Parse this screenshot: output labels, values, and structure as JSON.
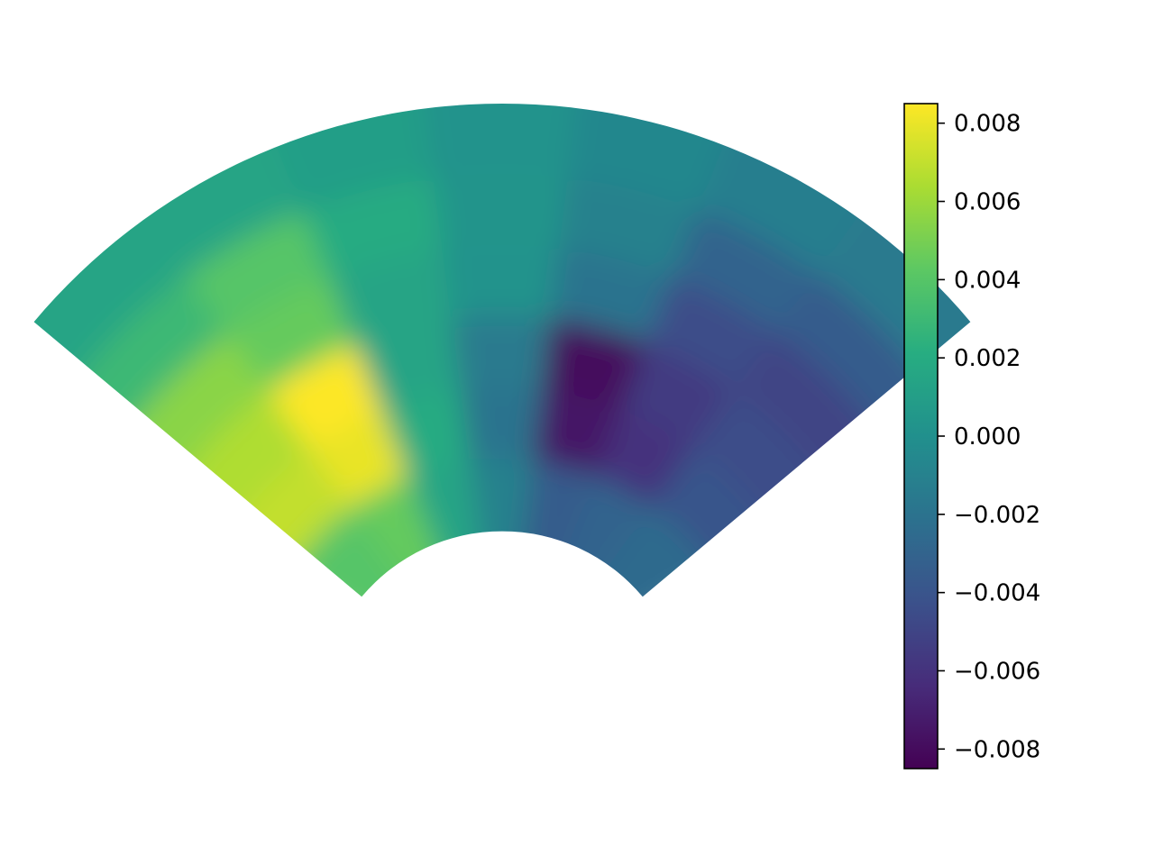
{
  "chart_data": {
    "type": "heatmap",
    "projection": "polar-sector",
    "colormap": "viridis",
    "theta_range_deg": [
      -50,
      50
    ],
    "r_range": [
      0.3,
      1.0
    ],
    "theta_bins": 7,
    "r_bins": 6,
    "rows_order": "outer-to-inner",
    "columns_order": "left-to-right",
    "values": [
      [
        0.0015,
        0.0015,
        0.001,
        0.0002,
        -0.0006,
        -0.0012,
        -0.0015
      ],
      [
        0.003,
        0.004,
        0.002,
        0.0003,
        -0.001,
        -0.003,
        -0.0035
      ],
      [
        0.0055,
        0.0045,
        0.0015,
        0.0002,
        -0.002,
        -0.0045,
        -0.005
      ],
      [
        0.0065,
        0.0085,
        0.0015,
        -0.0015,
        -0.008,
        -0.0055,
        -0.0045
      ],
      [
        0.007,
        0.008,
        0.002,
        -0.002,
        -0.0075,
        -0.006,
        -0.004
      ],
      [
        0.004,
        0.0045,
        0.0015,
        -0.001,
        -0.0035,
        -0.003,
        -0.0025
      ]
    ],
    "colorbar": {
      "vmin": -0.0085,
      "vmax": 0.0085,
      "ticks": [
        "0.008",
        "0.006",
        "0.004",
        "0.002",
        "0.000",
        "−0.002",
        "−0.004",
        "−0.006",
        "−0.008"
      ],
      "tick_values": [
        0.008,
        0.006,
        0.004,
        0.002,
        0.0,
        -0.002,
        -0.004,
        -0.006,
        -0.008
      ]
    },
    "axes_visible": false,
    "grid": false
  }
}
